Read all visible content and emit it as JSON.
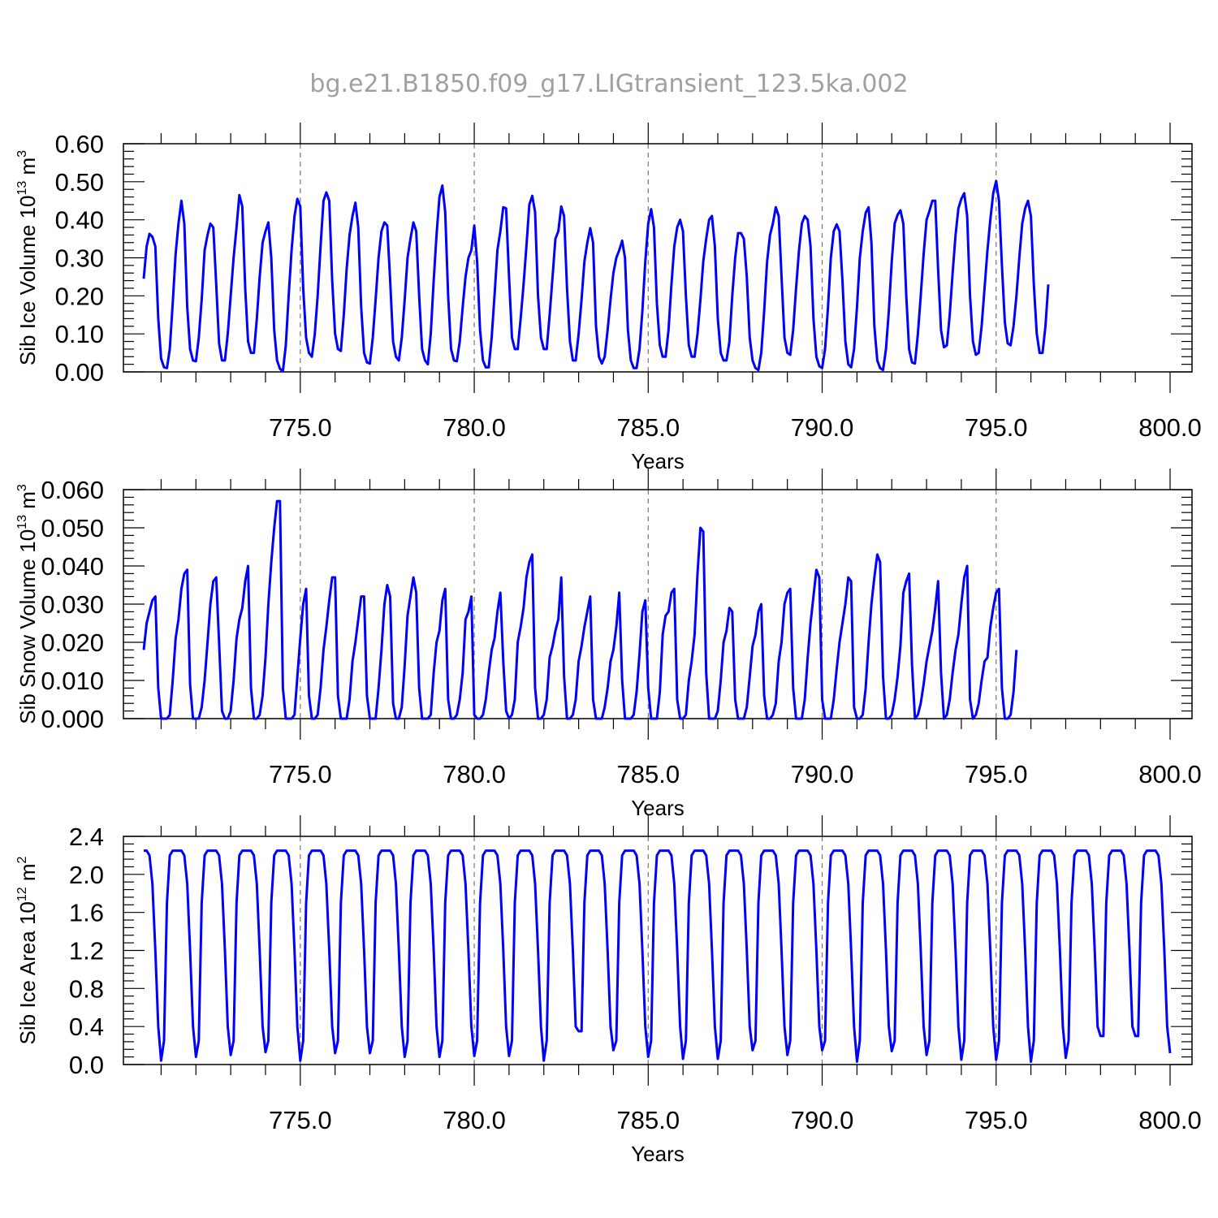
{
  "title": "bg.e21.B1850.f09_g17.LIGtransient_123.5ka.002",
  "colors": {
    "line": "#0000ff",
    "axis": "#000000",
    "grid": "#777777",
    "title": "#a0a0a0"
  },
  "chart_data": [
    {
      "type": "line",
      "ylabel": {
        "main": "Sib Ice Volume 10",
        "exp": "13",
        "unit": " m",
        "unit_exp": "3"
      },
      "xlabel": "Years",
      "xlim": [
        770.5,
        800.0
      ],
      "ylim": [
        0.0,
        0.6
      ],
      "yticks": [
        0.0,
        0.1,
        0.2,
        0.3,
        0.4,
        0.5,
        0.6
      ],
      "ytick_labels": [
        "0.00",
        "0.10",
        "0.20",
        "0.30",
        "0.40",
        "0.50",
        "0.60"
      ],
      "xticks": [
        775,
        780,
        785,
        790,
        795,
        800
      ],
      "xtick_labels": [
        "775.0",
        "780.0",
        "785.0",
        "790.0",
        "795.0",
        "800.0"
      ],
      "grid": "vertical dashed at major x ticks",
      "series": [
        {
          "x_start": 770.5,
          "x_step": 0.0833333,
          "values": [
            0.245,
            0.33,
            0.363,
            0.355,
            0.33,
            0.14,
            0.035,
            0.012,
            0.01,
            0.06,
            0.18,
            0.31,
            0.39,
            0.45,
            0.39,
            0.17,
            0.06,
            0.03,
            0.028,
            0.09,
            0.19,
            0.32,
            0.36,
            0.39,
            0.38,
            0.23,
            0.075,
            0.03,
            0.03,
            0.1,
            0.2,
            0.3,
            0.38,
            0.465,
            0.435,
            0.22,
            0.08,
            0.05,
            0.05,
            0.14,
            0.25,
            0.34,
            0.37,
            0.393,
            0.3,
            0.11,
            0.03,
            0.008,
            0.002,
            0.07,
            0.2,
            0.32,
            0.41,
            0.455,
            0.435,
            0.22,
            0.09,
            0.05,
            0.04,
            0.1,
            0.2,
            0.33,
            0.45,
            0.472,
            0.45,
            0.24,
            0.1,
            0.06,
            0.055,
            0.15,
            0.27,
            0.36,
            0.41,
            0.445,
            0.38,
            0.17,
            0.05,
            0.025,
            0.022,
            0.09,
            0.19,
            0.3,
            0.37,
            0.393,
            0.385,
            0.24,
            0.08,
            0.04,
            0.03,
            0.09,
            0.19,
            0.3,
            0.35,
            0.393,
            0.37,
            0.2,
            0.06,
            0.03,
            0.02,
            0.1,
            0.24,
            0.36,
            0.46,
            0.49,
            0.42,
            0.2,
            0.06,
            0.03,
            0.028,
            0.08,
            0.17,
            0.25,
            0.3,
            0.32,
            0.385,
            0.29,
            0.11,
            0.03,
            0.012,
            0.012,
            0.09,
            0.2,
            0.32,
            0.37,
            0.433,
            0.43,
            0.25,
            0.09,
            0.06,
            0.06,
            0.14,
            0.23,
            0.33,
            0.44,
            0.463,
            0.42,
            0.2,
            0.09,
            0.06,
            0.06,
            0.15,
            0.25,
            0.35,
            0.37,
            0.435,
            0.41,
            0.22,
            0.08,
            0.03,
            0.03,
            0.1,
            0.19,
            0.29,
            0.34,
            0.378,
            0.34,
            0.12,
            0.04,
            0.022,
            0.04,
            0.11,
            0.19,
            0.26,
            0.3,
            0.32,
            0.345,
            0.3,
            0.11,
            0.03,
            0.01,
            0.01,
            0.06,
            0.16,
            0.29,
            0.39,
            0.428,
            0.38,
            0.18,
            0.07,
            0.04,
            0.04,
            0.11,
            0.23,
            0.33,
            0.38,
            0.4,
            0.37,
            0.2,
            0.07,
            0.04,
            0.04,
            0.1,
            0.19,
            0.29,
            0.35,
            0.4,
            0.41,
            0.33,
            0.14,
            0.05,
            0.03,
            0.03,
            0.08,
            0.2,
            0.3,
            0.365,
            0.365,
            0.35,
            0.25,
            0.09,
            0.03,
            0.01,
            0.005,
            0.05,
            0.16,
            0.29,
            0.36,
            0.39,
            0.433,
            0.41,
            0.25,
            0.09,
            0.05,
            0.045,
            0.11,
            0.22,
            0.32,
            0.39,
            0.41,
            0.4,
            0.33,
            0.14,
            0.04,
            0.015,
            0.01,
            0.06,
            0.17,
            0.3,
            0.37,
            0.388,
            0.37,
            0.24,
            0.08,
            0.02,
            0.012,
            0.06,
            0.17,
            0.3,
            0.37,
            0.418,
            0.433,
            0.34,
            0.12,
            0.03,
            0.01,
            0.005,
            0.06,
            0.16,
            0.29,
            0.39,
            0.413,
            0.425,
            0.39,
            0.2,
            0.06,
            0.025,
            0.022,
            0.1,
            0.2,
            0.31,
            0.4,
            0.423,
            0.45,
            0.45,
            0.27,
            0.11,
            0.065,
            0.07,
            0.15,
            0.26,
            0.36,
            0.43,
            0.455,
            0.47,
            0.41,
            0.2,
            0.08,
            0.045,
            0.05,
            0.12,
            0.22,
            0.32,
            0.4,
            0.47,
            0.502,
            0.45,
            0.28,
            0.13,
            0.075,
            0.07,
            0.12,
            0.2,
            0.3,
            0.39,
            0.43,
            0.45,
            0.41,
            0.23,
            0.1,
            0.05,
            0.05,
            0.12,
            0.23
          ]
        }
      ]
    },
    {
      "type": "line",
      "ylabel": {
        "main": "Sib Snow Volume 10",
        "exp": "13",
        "unit": " m",
        "unit_exp": "3"
      },
      "xlabel": "Years",
      "xlim": [
        770.5,
        800.0
      ],
      "ylim": [
        0.0,
        0.06
      ],
      "yticks": [
        0.0,
        0.01,
        0.02,
        0.03,
        0.04,
        0.05,
        0.06
      ],
      "ytick_labels": [
        "0.000",
        "0.010",
        "0.020",
        "0.030",
        "0.040",
        "0.050",
        "0.060"
      ],
      "xticks": [
        775,
        780,
        785,
        790,
        795,
        800
      ],
      "xtick_labels": [
        "775.0",
        "780.0",
        "785.0",
        "790.0",
        "795.0",
        "800.0"
      ],
      "grid": "vertical dashed at major x ticks",
      "series": [
        {
          "x_start": 770.5,
          "x_step": 0.0833333,
          "values": [
            0.018,
            0.025,
            0.028,
            0.031,
            0.032,
            0.008,
            0.0,
            0.0,
            0.0,
            0.001,
            0.01,
            0.021,
            0.026,
            0.034,
            0.038,
            0.039,
            0.009,
            0.0,
            0.0,
            0.0,
            0.003,
            0.01,
            0.02,
            0.03,
            0.036,
            0.037,
            0.02,
            0.002,
            0.0,
            0.0,
            0.002,
            0.01,
            0.021,
            0.026,
            0.029,
            0.036,
            0.04,
            0.008,
            0.0,
            0.0,
            0.001,
            0.006,
            0.016,
            0.03,
            0.041,
            0.05,
            0.057,
            0.057,
            0.008,
            0.0,
            0.0,
            0.0,
            0.001,
            0.011,
            0.021,
            0.03,
            0.034,
            0.006,
            0.0,
            0.0,
            0.001,
            0.008,
            0.018,
            0.024,
            0.031,
            0.037,
            0.037,
            0.006,
            0.0,
            0.0,
            0.0,
            0.005,
            0.015,
            0.02,
            0.026,
            0.032,
            0.032,
            0.006,
            0.0,
            0.0,
            0.0,
            0.008,
            0.018,
            0.03,
            0.035,
            0.032,
            0.004,
            0.0,
            0.0,
            0.003,
            0.014,
            0.027,
            0.032,
            0.037,
            0.033,
            0.008,
            0.0,
            0.0,
            0.0,
            0.001,
            0.012,
            0.02,
            0.023,
            0.031,
            0.034,
            0.005,
            0.0,
            0.0,
            0.001,
            0.005,
            0.012,
            0.026,
            0.028,
            0.032,
            0.001,
            0.0,
            0.0,
            0.001,
            0.005,
            0.012,
            0.018,
            0.021,
            0.028,
            0.033,
            0.015,
            0.002,
            0.0,
            0.001,
            0.005,
            0.02,
            0.024,
            0.029,
            0.037,
            0.041,
            0.043,
            0.008,
            0.0,
            0.0,
            0.001,
            0.005,
            0.016,
            0.019,
            0.023,
            0.026,
            0.037,
            0.011,
            0.0,
            0.0,
            0.001,
            0.005,
            0.015,
            0.019,
            0.024,
            0.028,
            0.032,
            0.005,
            0.0,
            0.0,
            0.0,
            0.003,
            0.008,
            0.015,
            0.018,
            0.024,
            0.033,
            0.01,
            0.0,
            0.0,
            0.0,
            0.001,
            0.007,
            0.017,
            0.028,
            0.031,
            0.008,
            0.0,
            0.0,
            0.0,
            0.007,
            0.022,
            0.027,
            0.028,
            0.033,
            0.034,
            0.005,
            0.0,
            0.0,
            0.001,
            0.01,
            0.015,
            0.022,
            0.038,
            0.05,
            0.049,
            0.012,
            0.0,
            0.0,
            0.0,
            0.002,
            0.01,
            0.02,
            0.023,
            0.029,
            0.028,
            0.005,
            0.0,
            0.0,
            0.0,
            0.003,
            0.011,
            0.019,
            0.022,
            0.028,
            0.03,
            0.006,
            0.0,
            0.0,
            0.001,
            0.004,
            0.015,
            0.02,
            0.03,
            0.033,
            0.034,
            0.008,
            0.0,
            0.0,
            0.0,
            0.005,
            0.016,
            0.025,
            0.032,
            0.039,
            0.037,
            0.005,
            0.0,
            0.0,
            0.0,
            0.005,
            0.013,
            0.02,
            0.025,
            0.03,
            0.037,
            0.036,
            0.003,
            0.0,
            0.0,
            0.001,
            0.008,
            0.02,
            0.03,
            0.037,
            0.043,
            0.041,
            0.011,
            0.0,
            0.0,
            0.001,
            0.005,
            0.011,
            0.019,
            0.033,
            0.036,
            0.038,
            0.014,
            0.0,
            0.001,
            0.004,
            0.009,
            0.015,
            0.019,
            0.023,
            0.029,
            0.036,
            0.012,
            0.0,
            0.001,
            0.005,
            0.012,
            0.018,
            0.022,
            0.03,
            0.037,
            0.04,
            0.005,
            0.0,
            0.001,
            0.004,
            0.01,
            0.015,
            0.016,
            0.024,
            0.029,
            0.033,
            0.034,
            0.008,
            0.0,
            0.0,
            0.001,
            0.007,
            0.018
          ]
        }
      ]
    },
    {
      "type": "line",
      "ylabel": {
        "main": "Sib Ice Area 10",
        "exp": "12",
        "unit": " m",
        "unit_exp": "2"
      },
      "xlabel": "Years",
      "xlim": [
        770.5,
        800.0
      ],
      "ylim": [
        0.0,
        2.4
      ],
      "yticks": [
        0.0,
        0.4,
        0.8,
        1.2,
        1.6,
        2.0,
        2.4
      ],
      "ytick_labels": [
        "0.0",
        "0.4",
        "0.8",
        "1.2",
        "1.6",
        "2.0",
        "2.4"
      ],
      "xticks": [
        775,
        780,
        785,
        790,
        795,
        800
      ],
      "xtick_labels": [
        "775.0",
        "780.0",
        "785.0",
        "790.0",
        "795.0",
        "800.0"
      ],
      "grid": "vertical dashed at major x ticks",
      "series": [
        {
          "x_start": 770.5,
          "x_step": 0.0833333,
          "annual_shape": [
            2.25,
            2.25,
            2.2,
            1.9,
            1.2,
            0.4,
            0.08,
            0.25,
            1.7,
            2.2,
            2.25,
            2.25
          ],
          "minima": [
            0.04,
            0.08,
            0.1,
            0.13,
            0.04,
            0.12,
            0.12,
            0.08,
            0.08,
            0.09,
            0.09,
            0.04,
            0.35,
            0.15,
            0.08,
            0.06,
            0.06,
            0.15,
            0.1,
            0.15,
            0.03,
            0.14,
            0.1,
            0.05,
            0.05,
            0.03,
            0.07,
            0.3,
            0.3,
            0.12
          ]
        }
      ]
    }
  ]
}
